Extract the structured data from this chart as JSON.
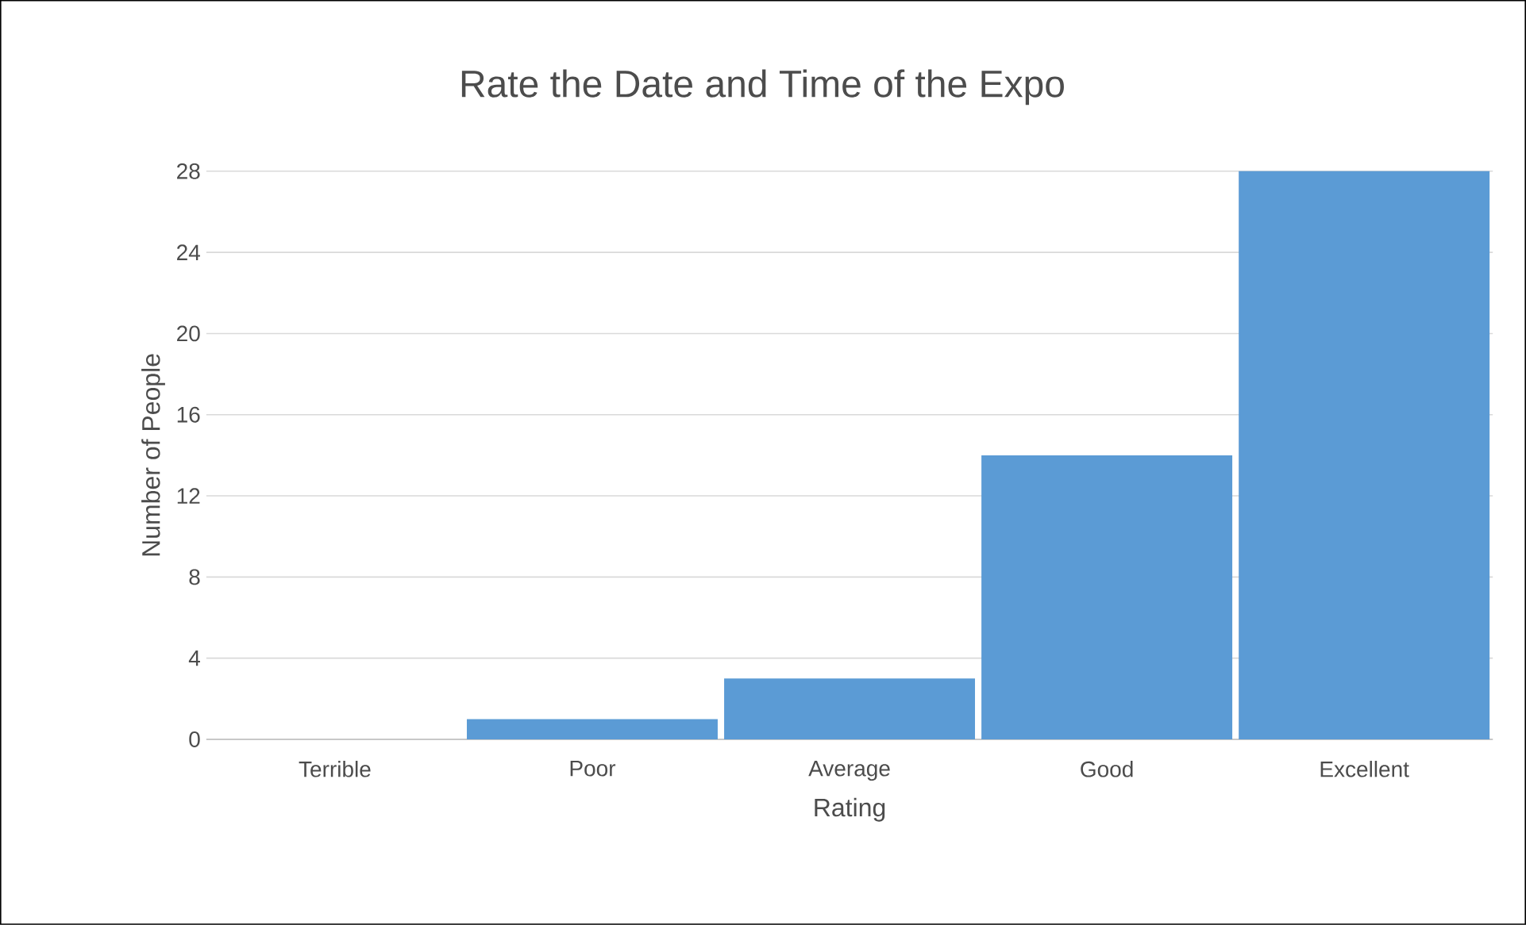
{
  "chart_data": {
    "type": "bar",
    "title": "Rate the Date and Time of the Expo",
    "xlabel": "Rating",
    "ylabel": "Number of People",
    "categories": [
      "Terrible",
      "Poor",
      "Average",
      "Good",
      "Excellent"
    ],
    "values": [
      0,
      1,
      3,
      14,
      28
    ],
    "color": "#5b9bd5",
    "ylim": [
      0,
      28
    ],
    "yticks": [
      0,
      4,
      8,
      12,
      16,
      20,
      24,
      28
    ],
    "grid": "y"
  }
}
